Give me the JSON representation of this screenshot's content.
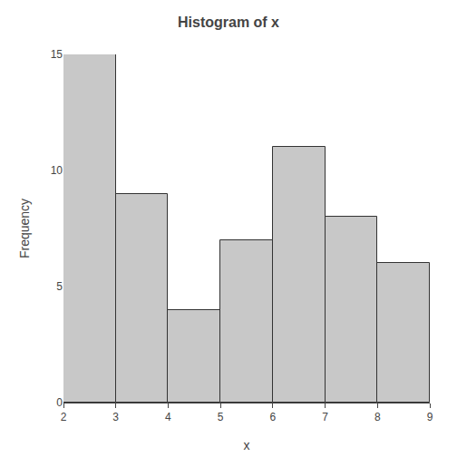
{
  "chart_data": {
    "type": "histogram",
    "title": "Histogram of x",
    "xlabel": "x",
    "ylabel": "Frequency",
    "bins": [
      2,
      3,
      4,
      5,
      6,
      7,
      8,
      9
    ],
    "values": [
      15,
      9,
      4,
      7,
      11,
      8,
      6
    ],
    "color": "#c8c8c8",
    "xlim": [
      2,
      9
    ],
    "xticks": [
      2,
      3,
      4,
      5,
      6,
      7,
      8,
      9
    ],
    "ylim": [
      0,
      15
    ],
    "yticks": [
      0,
      5,
      10,
      15
    ],
    "grid": false
  }
}
